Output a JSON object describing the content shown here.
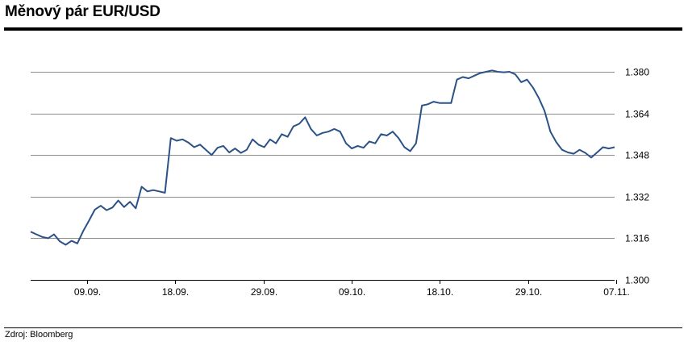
{
  "title": "Měnový pár EUR/USD",
  "source": "Zdroj: Bloomberg",
  "colors": {
    "line": "#2b5288",
    "grid": "#8c8c8c",
    "axis": "#000000",
    "rule": "#000000"
  },
  "chart_data": {
    "type": "line",
    "title": "Měnový pár EUR/USD",
    "xlabel": "",
    "ylabel": "",
    "ylim": [
      1.3,
      1.38
    ],
    "yticks": [
      "1.380",
      "1.364",
      "1.348",
      "1.332",
      "1.316",
      "1.300"
    ],
    "xticks": [
      "09.09.",
      "18.09.",
      "29.09.",
      "09.10.",
      "18.10.",
      "29.10.",
      "07.11."
    ],
    "grid": "horizontal",
    "legend": "none",
    "series": [
      {
        "values": [
          [
            0,
            1.3185
          ],
          [
            1,
            1.3175
          ],
          [
            2,
            1.3165
          ],
          [
            3,
            1.316
          ],
          [
            4,
            1.3175
          ],
          [
            5,
            1.3148
          ],
          [
            6,
            1.3135
          ],
          [
            7,
            1.315
          ],
          [
            8,
            1.314
          ],
          [
            9,
            1.3188
          ],
          [
            10,
            1.3228
          ],
          [
            11,
            1.327
          ],
          [
            12,
            1.3285
          ],
          [
            13,
            1.3268
          ],
          [
            14,
            1.3278
          ],
          [
            15,
            1.3305
          ],
          [
            16,
            1.328
          ],
          [
            17,
            1.33
          ],
          [
            18,
            1.3275
          ],
          [
            19,
            1.3358
          ],
          [
            20,
            1.334
          ],
          [
            21,
            1.3345
          ],
          [
            22,
            1.334
          ],
          [
            23,
            1.3335
          ],
          [
            24,
            1.3545
          ],
          [
            25,
            1.3535
          ],
          [
            26,
            1.354
          ],
          [
            27,
            1.3528
          ],
          [
            28,
            1.351
          ],
          [
            29,
            1.352
          ],
          [
            30,
            1.35
          ],
          [
            31,
            1.348
          ],
          [
            32,
            1.3508
          ],
          [
            33,
            1.3515
          ],
          [
            34,
            1.349
          ],
          [
            35,
            1.3505
          ],
          [
            36,
            1.3488
          ],
          [
            37,
            1.35
          ],
          [
            38,
            1.354
          ],
          [
            39,
            1.352
          ],
          [
            40,
            1.351
          ],
          [
            41,
            1.354
          ],
          [
            42,
            1.3525
          ],
          [
            43,
            1.356
          ],
          [
            44,
            1.355
          ],
          [
            45,
            1.359
          ],
          [
            46,
            1.36
          ],
          [
            47,
            1.3625
          ],
          [
            48,
            1.358
          ],
          [
            49,
            1.3555
          ],
          [
            50,
            1.3565
          ],
          [
            51,
            1.357
          ],
          [
            52,
            1.358
          ],
          [
            53,
            1.357
          ],
          [
            54,
            1.3525
          ],
          [
            55,
            1.3505
          ],
          [
            56,
            1.3515
          ],
          [
            57,
            1.3508
          ],
          [
            58,
            1.3532
          ],
          [
            59,
            1.3525
          ],
          [
            60,
            1.356
          ],
          [
            61,
            1.3555
          ],
          [
            62,
            1.357
          ],
          [
            63,
            1.3545
          ],
          [
            64,
            1.351
          ],
          [
            65,
            1.3495
          ],
          [
            66,
            1.3525
          ],
          [
            67,
            1.367
          ],
          [
            68,
            1.3675
          ],
          [
            69,
            1.3685
          ],
          [
            70,
            1.368
          ],
          [
            71,
            1.368
          ],
          [
            72,
            1.368
          ],
          [
            73,
            1.377
          ],
          [
            74,
            1.378
          ],
          [
            75,
            1.3775
          ],
          [
            76,
            1.3785
          ],
          [
            77,
            1.3795
          ],
          [
            78,
            1.38
          ],
          [
            79,
            1.3805
          ],
          [
            80,
            1.38
          ],
          [
            81,
            1.3798
          ],
          [
            82,
            1.38
          ],
          [
            83,
            1.379
          ],
          [
            84,
            1.376
          ],
          [
            85,
            1.377
          ],
          [
            86,
            1.374
          ],
          [
            87,
            1.37
          ],
          [
            88,
            1.365
          ],
          [
            89,
            1.357
          ],
          [
            90,
            1.353
          ],
          [
            91,
            1.35
          ],
          [
            92,
            1.349
          ],
          [
            93,
            1.3485
          ],
          [
            94,
            1.35
          ],
          [
            95,
            1.3488
          ],
          [
            96,
            1.347
          ],
          [
            97,
            1.349
          ],
          [
            98,
            1.351
          ],
          [
            99,
            1.3505
          ],
          [
            100,
            1.351
          ]
        ]
      }
    ]
  }
}
